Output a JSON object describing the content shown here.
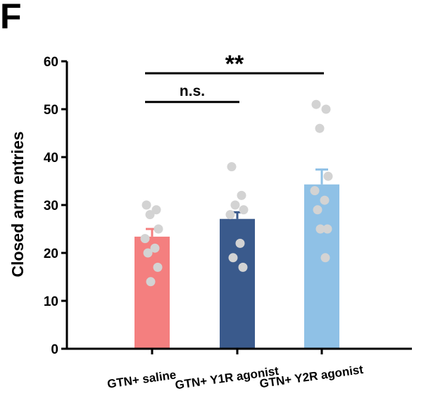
{
  "panel_label": "F",
  "chart_data": {
    "type": "bar",
    "title": "",
    "xlabel": "",
    "ylabel": "Closed arm entries",
    "ylim": [
      0,
      60
    ],
    "yticks": [
      0,
      10,
      20,
      30,
      40,
      50,
      60
    ],
    "categories": [
      "GTN+ saline",
      "GTN+ Y1R agonist",
      "GTN+ Y2R agonist"
    ],
    "values": [
      23.4,
      27.1,
      34.3
    ],
    "errors": [
      1.6,
      1.4,
      3.1
    ],
    "colors": [
      "#f47f7f",
      "#3a5a8c",
      "#8fc1e6"
    ],
    "point_color": "#d3d3d3",
    "points": [
      [
        30,
        29,
        28,
        25,
        23,
        21,
        20,
        17,
        14
      ],
      [
        38,
        32,
        30,
        29,
        28,
        22,
        19,
        17
      ],
      [
        51,
        50,
        46,
        36,
        33,
        31,
        29,
        25,
        25,
        19
      ]
    ],
    "significance": [
      {
        "label": "n.s.",
        "from": 0,
        "to": 1,
        "y": 51.5
      },
      {
        "label": "**",
        "from": 0,
        "to": 2,
        "y": 57.5
      }
    ]
  }
}
